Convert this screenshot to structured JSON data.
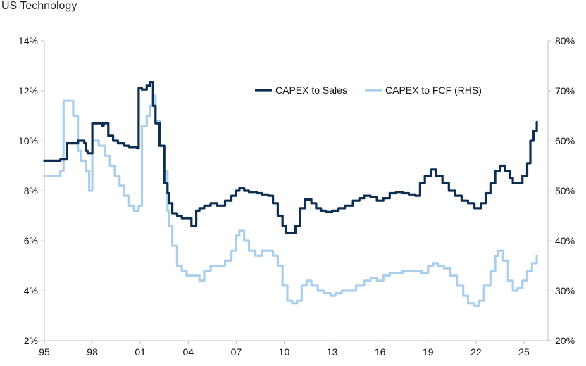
{
  "chart_data": {
    "type": "line",
    "title": "US Technology",
    "xlabel": "",
    "ylabel_left": "",
    "ylabel_right": "",
    "x_ticks": [
      "95",
      "98",
      "01",
      "04",
      "07",
      "10",
      "13",
      "16",
      "19",
      "22",
      "25"
    ],
    "x_tick_years": [
      1995,
      1998,
      2001,
      2004,
      2007,
      2010,
      2013,
      2016,
      2019,
      2022,
      2025
    ],
    "xlim": [
      1995,
      2026.5
    ],
    "y_left": {
      "ticks": [
        "2%",
        "4%",
        "6%",
        "8%",
        "10%",
        "12%",
        "14%"
      ],
      "lim": [
        2,
        14
      ]
    },
    "y_right": {
      "ticks": [
        "20%",
        "30%",
        "40%",
        "50%",
        "60%",
        "70%",
        "80%"
      ],
      "lim": [
        20,
        80
      ]
    },
    "legend_position": "top-right",
    "series": [
      {
        "name": "CAPEX to Sales",
        "axis": "left",
        "color": "#0b2e52",
        "x": [
          1995.0,
          1995.9,
          1996.0,
          1996.4,
          1996.8,
          1997.1,
          1997.5,
          1997.6,
          1997.7,
          1998.0,
          1998.6,
          1998.7,
          1999.0,
          1999.3,
          1999.6,
          2000.0,
          2000.3,
          2000.8,
          2000.9,
          2001.1,
          2001.4,
          2001.6,
          2001.8,
          2001.95,
          2002.2,
          2002.5,
          2002.7,
          2002.8,
          2003.0,
          2003.3,
          2003.6,
          2003.9,
          2004.2,
          2004.5,
          2004.7,
          2005.0,
          2005.4,
          2005.8,
          2006.3,
          2006.7,
          2007.0,
          2007.2,
          2007.5,
          2007.8,
          2008.3,
          2008.6,
          2009.0,
          2009.3,
          2009.6,
          2009.9,
          2010.1,
          2010.4,
          2010.7,
          2011.0,
          2011.3,
          2011.7,
          2012.0,
          2012.3,
          2012.6,
          2013.0,
          2013.4,
          2013.8,
          2014.3,
          2014.7,
          2015.0,
          2015.4,
          2015.8,
          2016.2,
          2016.6,
          2017.0,
          2017.4,
          2017.8,
          2018.2,
          2018.5,
          2018.8,
          2019.2,
          2019.5,
          2019.9,
          2020.3,
          2020.7,
          2021.1,
          2021.5,
          2021.9,
          2022.3,
          2022.6,
          2022.9,
          2023.2,
          2023.5,
          2023.8,
          2024.1,
          2024.3,
          2024.6,
          2024.9,
          2025.2,
          2025.4,
          2025.6,
          2025.8
        ],
        "values": [
          9.2,
          9.2,
          9.25,
          9.9,
          9.9,
          10.0,
          9.9,
          9.6,
          9.5,
          10.7,
          10.6,
          10.7,
          10.2,
          10.0,
          9.9,
          9.8,
          9.75,
          9.7,
          12.1,
          12.05,
          12.2,
          12.35,
          11.4,
          10.7,
          9.8,
          8.3,
          7.9,
          7.5,
          7.1,
          7.0,
          6.9,
          6.9,
          6.6,
          7.2,
          7.3,
          7.4,
          7.5,
          7.4,
          7.6,
          7.8,
          8.0,
          8.1,
          8.0,
          7.95,
          7.9,
          7.85,
          7.8,
          7.5,
          7.0,
          6.6,
          6.3,
          6.3,
          6.6,
          7.3,
          7.65,
          7.5,
          7.3,
          7.2,
          7.15,
          7.2,
          7.3,
          7.4,
          7.6,
          7.7,
          7.8,
          7.75,
          7.6,
          7.7,
          7.9,
          7.95,
          7.9,
          7.85,
          7.8,
          8.3,
          8.6,
          8.85,
          8.6,
          8.3,
          8.0,
          7.8,
          7.6,
          7.5,
          7.3,
          7.5,
          7.9,
          8.3,
          8.8,
          9.0,
          8.8,
          8.5,
          8.3,
          8.3,
          8.6,
          9.1,
          10.0,
          10.4,
          10.75
        ]
      },
      {
        "name": "CAPEX to FCF (RHS)",
        "axis": "right",
        "color": "#a9cfec",
        "x": [
          1995.0,
          1995.9,
          1996.0,
          1996.2,
          1996.5,
          1996.8,
          1997.1,
          1997.3,
          1997.6,
          1997.8,
          1998.0,
          1998.4,
          1998.8,
          1999.1,
          1999.4,
          1999.7,
          2000.0,
          2000.3,
          2000.6,
          2000.9,
          2001.1,
          2001.4,
          2001.6,
          2001.8,
          2001.95,
          2002.2,
          2002.5,
          2002.7,
          2002.8,
          2003.0,
          2003.3,
          2003.6,
          2003.9,
          2004.3,
          2004.7,
          2005.0,
          2005.4,
          2005.8,
          2006.3,
          2006.7,
          2007.0,
          2007.2,
          2007.5,
          2007.8,
          2008.2,
          2008.6,
          2009.0,
          2009.3,
          2009.6,
          2009.9,
          2010.2,
          2010.5,
          2010.8,
          2011.1,
          2011.4,
          2011.7,
          2012.1,
          2012.5,
          2012.9,
          2013.2,
          2013.6,
          2014.0,
          2014.5,
          2015.0,
          2015.4,
          2015.8,
          2016.2,
          2016.6,
          2017.0,
          2017.4,
          2017.8,
          2018.2,
          2018.6,
          2019.0,
          2019.3,
          2019.6,
          2020.0,
          2020.4,
          2020.8,
          2021.2,
          2021.5,
          2021.9,
          2022.2,
          2022.5,
          2022.9,
          2023.2,
          2023.4,
          2023.7,
          2024.0,
          2024.3,
          2024.6,
          2024.9,
          2025.2,
          2025.5,
          2025.8
        ],
        "values": [
          53,
          53,
          54,
          68,
          68,
          65,
          58,
          56,
          54,
          50,
          60,
          59,
          57,
          55,
          53,
          51,
          49,
          47,
          46,
          47,
          63,
          65,
          67,
          69,
          64,
          59,
          54,
          46,
          43,
          39,
          35,
          34,
          33,
          33,
          32,
          34,
          35,
          35,
          36,
          38,
          41,
          42,
          40,
          38,
          37,
          38,
          38,
          37,
          35,
          31,
          28,
          27.5,
          28,
          31,
          32,
          31,
          30,
          29.5,
          29,
          29.5,
          30,
          30,
          31,
          32,
          32.5,
          32,
          33,
          33.5,
          33.5,
          34,
          34,
          34,
          33.5,
          35,
          35.5,
          35,
          34.5,
          33,
          31,
          29,
          27.5,
          27,
          28,
          31,
          34,
          37,
          38,
          36,
          32,
          30,
          30.5,
          32,
          34,
          35.5,
          37
        ]
      }
    ]
  }
}
